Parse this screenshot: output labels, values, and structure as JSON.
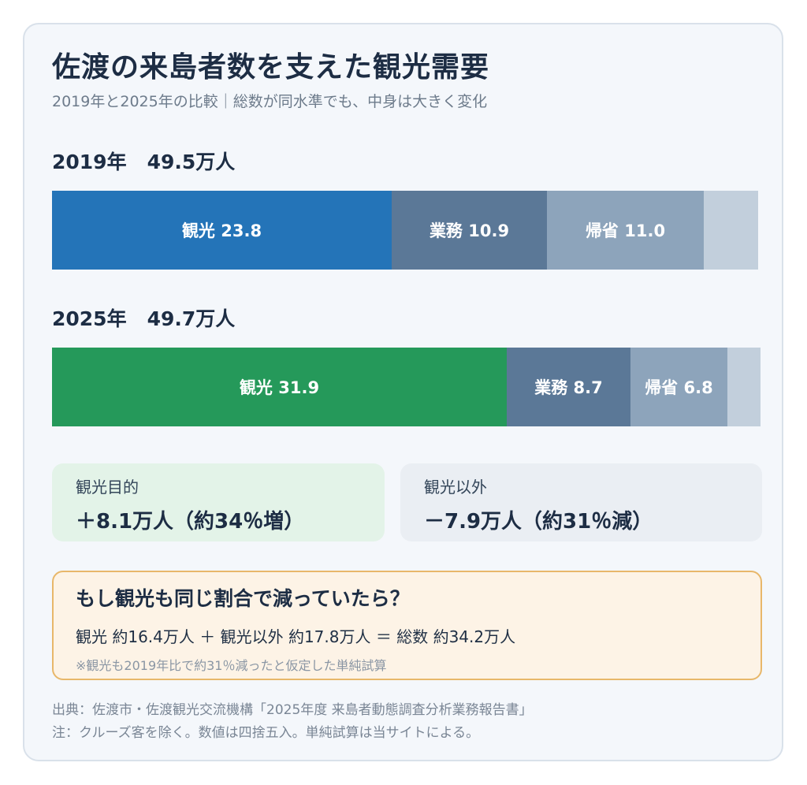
{
  "header": {
    "title": "佐渡の来島者数を支えた観光需要",
    "subtitle": "2019年と2025年の比較｜総数が同水準でも、中身は大きく変化"
  },
  "chart_data": {
    "type": "bar",
    "orientation": "horizontal-stacked",
    "unit": "万人",
    "categories": [
      "2019年",
      "2025年"
    ],
    "totals": [
      "49.5万人",
      "49.7万人"
    ],
    "total_values": [
      49.5,
      49.7
    ],
    "series": [
      {
        "name": "観光",
        "values": [
          23.8,
          31.9
        ],
        "labels": [
          "観光 23.8",
          "観光 31.9"
        ],
        "colors": [
          "#2474b8",
          "#25995a"
        ]
      },
      {
        "name": "業務",
        "values": [
          10.9,
          8.7
        ],
        "labels": [
          "業務 10.9",
          "業務 8.7"
        ],
        "colors": [
          "#5b7897",
          "#5b7897"
        ]
      },
      {
        "name": "帰省",
        "values": [
          11.0,
          6.8
        ],
        "labels": [
          "帰省 11.0",
          "帰省 6.8"
        ],
        "colors": [
          "#8da4bb",
          "#8da4bb"
        ]
      },
      {
        "values": [
          3.8,
          2.3
        ],
        "labels": [
          "",
          ""
        ],
        "colors": [
          "#c2cfdc",
          "#c2cfdc"
        ]
      }
    ],
    "grid": false,
    "legend": "none"
  },
  "comparison": {
    "tourism": {
      "label": "観光目的",
      "value": "＋8.1万人（約34％増）",
      "color": "#e3f3e8"
    },
    "other": {
      "label": "観光以外",
      "value": "－7.9万人（約31％減）",
      "color": "#eaeef3"
    }
  },
  "whatif": {
    "heading": "もし観光も同じ割合で減っていたら？",
    "equation": "観光 約16.4万人 ＋ 観光以外 約17.8万人 ＝ 総数 約34.2万人",
    "note": "※観光も2019年比で約31％減ったと仮定した単純試算",
    "accent": "#e8b76a"
  },
  "footer": {
    "source": "出典：佐渡市・佐渡観光交流機構「2025年度 来島者動態調査分析業務報告書」",
    "note": "注：クルーズ客を除く。数値は四捨五入。単純試算は当サイトによる。"
  }
}
